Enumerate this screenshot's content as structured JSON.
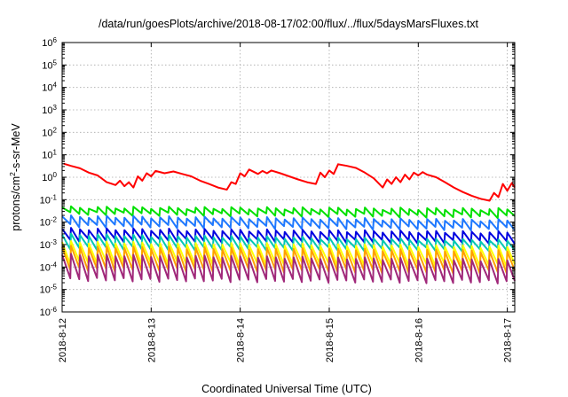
{
  "chart_data": {
    "type": "line",
    "title": "/data/run/goesPlots/archive/2018-08-17/02:00/flux/../flux/5daysMarsFluxes.txt",
    "xlabel": "Coordinated Universal Time (UTC)",
    "ylabel": {
      "pre": "protons/cm",
      "sup": "2",
      "post": "-s-sr-MeV"
    },
    "y_scale": "log",
    "ylim": [
      1e-06,
      1000000.0
    ],
    "y_ticks": [
      {
        "value": 1e-06,
        "base": "10",
        "exp": "-6"
      },
      {
        "value": 1e-05,
        "base": "10",
        "exp": "-5"
      },
      {
        "value": 0.0001,
        "base": "10",
        "exp": "-4"
      },
      {
        "value": 0.001,
        "base": "10",
        "exp": "-3"
      },
      {
        "value": 0.01,
        "base": "10",
        "exp": "-2"
      },
      {
        "value": 0.1,
        "base": "10",
        "exp": "-1"
      },
      {
        "value": 1,
        "base": "10",
        "exp": "0"
      },
      {
        "value": 10,
        "base": "10",
        "exp": "1"
      },
      {
        "value": 100,
        "base": "10",
        "exp": "2"
      },
      {
        "value": 1000,
        "base": "10",
        "exp": "3"
      },
      {
        "value": 10000,
        "base": "10",
        "exp": "4"
      },
      {
        "value": 100000,
        "base": "10",
        "exp": "5"
      },
      {
        "value": 1000000,
        "base": "10",
        "exp": "6"
      }
    ],
    "xlim": [
      "2018-08-12T00:00",
      "2018-08-17T02:00"
    ],
    "x_ticks": [
      {
        "value": "2018-08-12T00:00",
        "label": "2018-8-12"
      },
      {
        "value": "2018-08-13T00:00",
        "label": "2018-8-13"
      },
      {
        "value": "2018-08-14T00:00",
        "label": "2018-8-14"
      },
      {
        "value": "2018-08-15T00:00",
        "label": "2018-8-15"
      },
      {
        "value": "2018-08-16T00:00",
        "label": "2018-8-16"
      },
      {
        "value": "2018-08-17T00:00",
        "label": "2018-8-17"
      }
    ],
    "grid": true,
    "legend": "none",
    "series": [
      {
        "color": "#ff0000",
        "points": [
          [
            "2018-08-12T00:24",
            4.0
          ],
          [
            "2018-08-12T02:24",
            3.2
          ],
          [
            "2018-08-12T04:48",
            2.5
          ],
          [
            "2018-08-12T07:12",
            1.6
          ],
          [
            "2018-08-12T09:36",
            1.2
          ],
          [
            "2018-08-12T12:00",
            0.6
          ],
          [
            "2018-08-12T14:24",
            0.45
          ],
          [
            "2018-08-12T15:36",
            0.7
          ],
          [
            "2018-08-12T16:48",
            0.4
          ],
          [
            "2018-08-12T18:00",
            0.6
          ],
          [
            "2018-08-12T19:12",
            0.35
          ],
          [
            "2018-08-12T20:24",
            1.1
          ],
          [
            "2018-08-12T21:36",
            0.7
          ],
          [
            "2018-08-12T22:48",
            1.5
          ],
          [
            "2018-08-13T00:00",
            1.1
          ],
          [
            "2018-08-13T01:12",
            1.9
          ],
          [
            "2018-08-13T03:36",
            1.5
          ],
          [
            "2018-08-13T06:00",
            1.8
          ],
          [
            "2018-08-13T08:24",
            1.4
          ],
          [
            "2018-08-13T10:48",
            1.1
          ],
          [
            "2018-08-13T13:12",
            0.7
          ],
          [
            "2018-08-13T15:36",
            0.5
          ],
          [
            "2018-08-13T18:00",
            0.35
          ],
          [
            "2018-08-13T20:24",
            0.28
          ],
          [
            "2018-08-13T21:36",
            0.6
          ],
          [
            "2018-08-13T22:48",
            0.5
          ],
          [
            "2018-08-14T00:00",
            1.5
          ],
          [
            "2018-08-14T01:12",
            1.1
          ],
          [
            "2018-08-14T02:24",
            2.2
          ],
          [
            "2018-08-14T04:48",
            1.4
          ],
          [
            "2018-08-14T06:00",
            1.9
          ],
          [
            "2018-08-14T07:12",
            1.5
          ],
          [
            "2018-08-14T08:24",
            2.0
          ],
          [
            "2018-08-14T10:48",
            1.5
          ],
          [
            "2018-08-14T13:12",
            1.1
          ],
          [
            "2018-08-14T15:36",
            0.8
          ],
          [
            "2018-08-14T18:00",
            0.6
          ],
          [
            "2018-08-14T20:24",
            0.5
          ],
          [
            "2018-08-14T21:36",
            1.6
          ],
          [
            "2018-08-14T22:48",
            1.0
          ],
          [
            "2018-08-15T00:00",
            2.0
          ],
          [
            "2018-08-15T01:12",
            1.4
          ],
          [
            "2018-08-15T02:24",
            3.8
          ],
          [
            "2018-08-15T04:48",
            3.2
          ],
          [
            "2018-08-15T07:12",
            2.6
          ],
          [
            "2018-08-15T09:36",
            1.6
          ],
          [
            "2018-08-15T12:00",
            0.9
          ],
          [
            "2018-08-15T14:24",
            0.35
          ],
          [
            "2018-08-15T15:36",
            0.8
          ],
          [
            "2018-08-15T16:48",
            0.5
          ],
          [
            "2018-08-15T18:00",
            1.0
          ],
          [
            "2018-08-15T19:12",
            0.6
          ],
          [
            "2018-08-15T20:24",
            1.3
          ],
          [
            "2018-08-15T21:36",
            0.8
          ],
          [
            "2018-08-15T22:48",
            1.6
          ],
          [
            "2018-08-16T00:00",
            1.2
          ],
          [
            "2018-08-16T01:12",
            1.7
          ],
          [
            "2018-08-16T02:24",
            1.3
          ],
          [
            "2018-08-16T04:48",
            1.0
          ],
          [
            "2018-08-16T07:12",
            0.6
          ],
          [
            "2018-08-16T09:36",
            0.35
          ],
          [
            "2018-08-16T12:00",
            0.22
          ],
          [
            "2018-08-16T14:24",
            0.15
          ],
          [
            "2018-08-16T16:48",
            0.11
          ],
          [
            "2018-08-16T19:12",
            0.09
          ],
          [
            "2018-08-16T20:24",
            0.2
          ],
          [
            "2018-08-16T21:36",
            0.13
          ],
          [
            "2018-08-16T22:48",
            0.5
          ],
          [
            "2018-08-17T00:00",
            0.25
          ],
          [
            "2018-08-17T01:12",
            0.55
          ],
          [
            "2018-08-17T02:00",
            0.35
          ]
        ]
      },
      {
        "color": "#00e000",
        "pattern": {
          "hi": 0.045,
          "lo": 0.024,
          "hi_end": 0.038,
          "lo_end": 0.018
        }
      },
      {
        "color": "#1e78ff",
        "pattern": {
          "hi": 0.018,
          "lo": 0.007,
          "hi_end": 0.012,
          "lo_end": 0.005
        }
      },
      {
        "color": "#0000e0",
        "pattern": {
          "hi": 0.005,
          "lo": 0.0016,
          "hi_end": 0.0035,
          "lo_end": 0.0013
        }
      },
      {
        "color": "#00c8b4",
        "pattern": {
          "hi": 0.0028,
          "lo": 0.0007,
          "hi_end": 0.0015,
          "lo_end": 0.0006
        }
      },
      {
        "color": "#ffff00",
        "pattern": {
          "hi": 0.0013,
          "lo": 0.00016,
          "hi_end": 0.0008,
          "lo_end": 0.00012
        }
      },
      {
        "color": "#ffa000",
        "pattern": {
          "hi": 0.0008,
          "lo": 8e-05,
          "hi_end": 0.0005,
          "lo_end": 6e-05
        }
      },
      {
        "color": "#a0287a",
        "pattern": {
          "hi": 0.00035,
          "lo": 2.8e-05,
          "hi_end": 0.0002,
          "lo_end": 2.2e-05
        }
      }
    ]
  }
}
